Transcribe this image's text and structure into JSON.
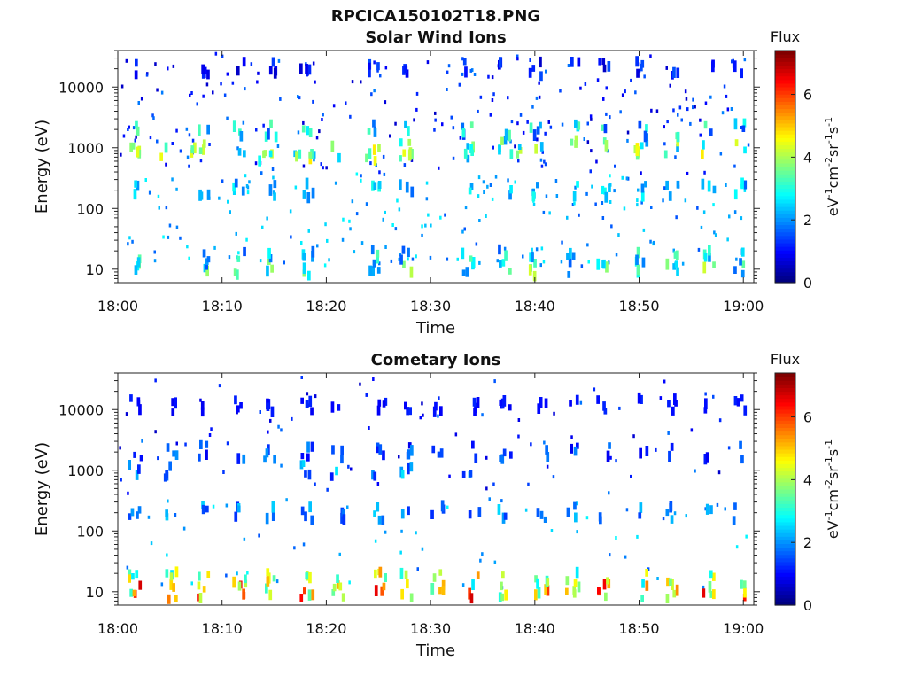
{
  "figure_title": "RPCICA150102T18.PNG",
  "colorbar": {
    "label": "Flux",
    "ticks": [
      "0",
      "2",
      "4",
      "6"
    ],
    "tick_values": [
      0,
      2,
      4,
      6
    ],
    "range": [
      0,
      7.4
    ],
    "colormap": "jet",
    "units_parts": [
      "eV",
      "-1",
      "cm",
      "-2",
      "sr",
      "-1",
      "s",
      "-1"
    ]
  },
  "chart_data": [
    {
      "type": "heatmap",
      "title": "Solar Wind Ions",
      "xlabel": "Time",
      "ylabel": "Energy (eV)",
      "x_ticks": [
        "18:00",
        "18:10",
        "18:20",
        "18:30",
        "18:40",
        "18:50",
        "19:00"
      ],
      "x_tick_minutes": [
        0,
        10,
        20,
        30,
        40,
        50,
        60
      ],
      "xlim_minutes": [
        0,
        61
      ],
      "y_ticks": [
        "10",
        "100",
        "1000",
        "10000"
      ],
      "y_tick_values": [
        10,
        100,
        1000,
        10000
      ],
      "y_scale": "log",
      "ylim": [
        6,
        40000
      ],
      "bands": [
        {
          "energy": 10,
          "flux_range": [
            1.5,
            4.5
          ],
          "peak_minutes": [
            1.5,
            8,
            11.5,
            14.5,
            18,
            24.5,
            27.5,
            33.5,
            37,
            40,
            43.5,
            46.5,
            50,
            53,
            56.5,
            59.5
          ]
        },
        {
          "energy": 16,
          "flux_range": [
            1.5,
            3.5
          ]
        },
        {
          "energy": 800,
          "flux_range": [
            2.0,
            4.8
          ],
          "peak_minutes": [
            1.5,
            4.5,
            7.5,
            14,
            17,
            18.5,
            20.5,
            24,
            27.5,
            33,
            38,
            49.5
          ]
        },
        {
          "energy": 1000,
          "flux_range": [
            2.0,
            4.8
          ]
        },
        {
          "energy": 2000,
          "flux_range": [
            1.2,
            3.5
          ]
        },
        {
          "energy": 200,
          "flux_range": [
            1.5,
            3.0
          ]
        },
        {
          "energy": 20000,
          "flux_range": [
            0.5,
            1.5
          ]
        }
      ]
    },
    {
      "type": "heatmap",
      "title": "Cometary Ions",
      "xlabel": "Time",
      "ylabel": "Energy (eV)",
      "x_ticks": [
        "18:00",
        "18:10",
        "18:20",
        "18:30",
        "18:40",
        "18:50",
        "19:00"
      ],
      "x_tick_minutes": [
        0,
        10,
        20,
        30,
        40,
        50,
        60
      ],
      "xlim_minutes": [
        0,
        61
      ],
      "y_ticks": [
        "10",
        "100",
        "1000",
        "10000"
      ],
      "y_tick_values": [
        10,
        100,
        1000,
        10000
      ],
      "y_scale": "log",
      "ylim": [
        6,
        40000
      ],
      "bands": [
        {
          "energy": 10,
          "flux_range": [
            3.0,
            6.8
          ],
          "peak_minutes": [
            1.5,
            5,
            8,
            11.5,
            14.5,
            18,
            21,
            25,
            27.5,
            30.5,
            34,
            37,
            40.5,
            43.5,
            46.5,
            50,
            53,
            56.5,
            59.5
          ]
        },
        {
          "energy": 16,
          "flux_range": [
            2.5,
            5.5
          ]
        },
        {
          "energy": 1000,
          "flux_range": [
            1.0,
            2.8
          ],
          "peak_minutes": [
            1.5,
            4.5,
            18,
            20.5,
            24.5,
            27.5,
            33.5
          ]
        },
        {
          "energy": 2000,
          "flux_range": [
            0.8,
            2.0
          ]
        },
        {
          "energy": 200,
          "flux_range": [
            1.2,
            2.5
          ]
        },
        {
          "energy": 12000,
          "flux_range": [
            0.8,
            1.2
          ]
        }
      ]
    }
  ]
}
